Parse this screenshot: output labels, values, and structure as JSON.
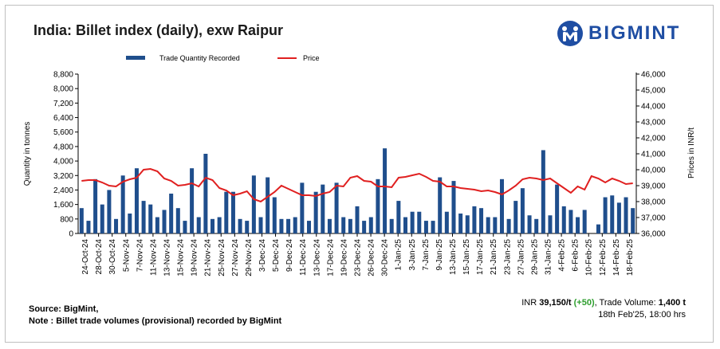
{
  "brand": {
    "name": "BIGMINT",
    "logo_icon": "bigmint-logo-icon",
    "color": "#1f4ea3"
  },
  "footer": {
    "source": "Source: BigMint,",
    "note": "Note : Billet trade volumes (provisional) recorded by BigMint",
    "price_prefix": "INR ",
    "price_value": "39,150/t",
    "price_change": "(+50)",
    "volume_prefix": ", Trade Volume: ",
    "volume_value": "1,400 t",
    "timestamp": "18th Feb'25, 18:00 hrs"
  },
  "chart_data": {
    "type": "bar+line",
    "title": "India: Billet index (daily), exw Raipur",
    "legend": [
      "Trade Quantity Recorded",
      "Price"
    ],
    "ylabel_left": "Quantity in tonnes",
    "ylabel_right": "Prices in INR/t",
    "y_left_ticks": [
      "0",
      "800",
      "1,600",
      "2,400",
      "3,200",
      "4,000",
      "4,800",
      "5,600",
      "6,400",
      "7,200",
      "8,000",
      "8,800"
    ],
    "y_right_ticks": [
      "36,000",
      "37,000",
      "38,000",
      "39,000",
      "40,000",
      "41,000",
      "42,000",
      "43,000",
      "44,000",
      "45,000",
      "46,000"
    ],
    "ylim_left": [
      0,
      8800
    ],
    "ylim_right": [
      36000,
      46000
    ],
    "x_tick_labels": [
      "24-Oct-24",
      "28-Oct-24",
      "30-Oct-24",
      "5-Nov-24",
      "7-Nov-24",
      "11-Nov-24",
      "13-Nov-24",
      "15-Nov-24",
      "19-Nov-24",
      "21-Nov-24",
      "25-Nov-24",
      "27-Nov-24",
      "29-Nov-24",
      "3-Dec-24",
      "5-Dec-24",
      "9-Dec-24",
      "11-Dec-24",
      "13-Dec-24",
      "17-Dec-24",
      "19-Dec-24",
      "23-Dec-24",
      "26-Dec-24",
      "30-Dec-24",
      "1-Jan-25",
      "3-Jan-25",
      "7-Jan-25",
      "9-Jan-25",
      "13-Jan-25",
      "15-Jan-25",
      "17-Jan-25",
      "21-Jan-25",
      "23-Jan-25",
      "27-Jan-25",
      "29-Jan-25",
      "31-Jan-25",
      "4-Feb-25",
      "6-Feb-25",
      "10-Feb-25",
      "12-Feb-25",
      "14-Feb-25",
      "18-Feb-25"
    ],
    "series": [
      {
        "name": "Trade Quantity Recorded",
        "axis": "left",
        "color": "#1f4e8c",
        "values": [
          1400,
          700,
          3000,
          1600,
          2400,
          800,
          3200,
          1100,
          3600,
          1800,
          1600,
          900,
          1300,
          2200,
          1400,
          700,
          3600,
          900,
          4400,
          800,
          900,
          2300,
          2300,
          800,
          700,
          3200,
          900,
          3100,
          2000,
          800,
          800,
          900,
          2800,
          700,
          2300,
          2700,
          800,
          2800,
          900,
          800,
          1500,
          700,
          900,
          3000,
          4700,
          800,
          1800,
          900,
          1200,
          1200,
          700,
          700,
          3100,
          1200,
          2900,
          1100,
          1000,
          1500,
          1400,
          900,
          900,
          3000,
          800,
          1800,
          2500,
          1000,
          800,
          4600,
          1000,
          2700,
          1500,
          1300,
          900,
          1300,
          0,
          500,
          2000,
          2100,
          1700,
          2000,
          1400
        ]
      },
      {
        "name": "Price",
        "axis": "right",
        "color": "#e02020",
        "values": [
          39300,
          39350,
          39350,
          39200,
          39000,
          38950,
          39250,
          39400,
          39500,
          40000,
          40050,
          39900,
          39450,
          39300,
          39000,
          39050,
          39150,
          38950,
          39500,
          39350,
          38850,
          38700,
          38400,
          38500,
          38650,
          38150,
          38000,
          38300,
          38600,
          39000,
          38800,
          38600,
          38400,
          38400,
          38350,
          38500,
          38600,
          39000,
          38950,
          39500,
          39600,
          39300,
          39250,
          38950,
          38950,
          38900,
          39500,
          39550,
          39650,
          39750,
          39550,
          39300,
          39250,
          38950,
          38950,
          38850,
          38800,
          38750,
          38650,
          38700,
          38600,
          38450,
          38700,
          39000,
          39400,
          39500,
          39450,
          39350,
          39450,
          39150,
          38850,
          38550,
          38950,
          38750,
          39600,
          39450,
          39200,
          39450,
          39300,
          39100,
          39150
        ]
      }
    ]
  }
}
